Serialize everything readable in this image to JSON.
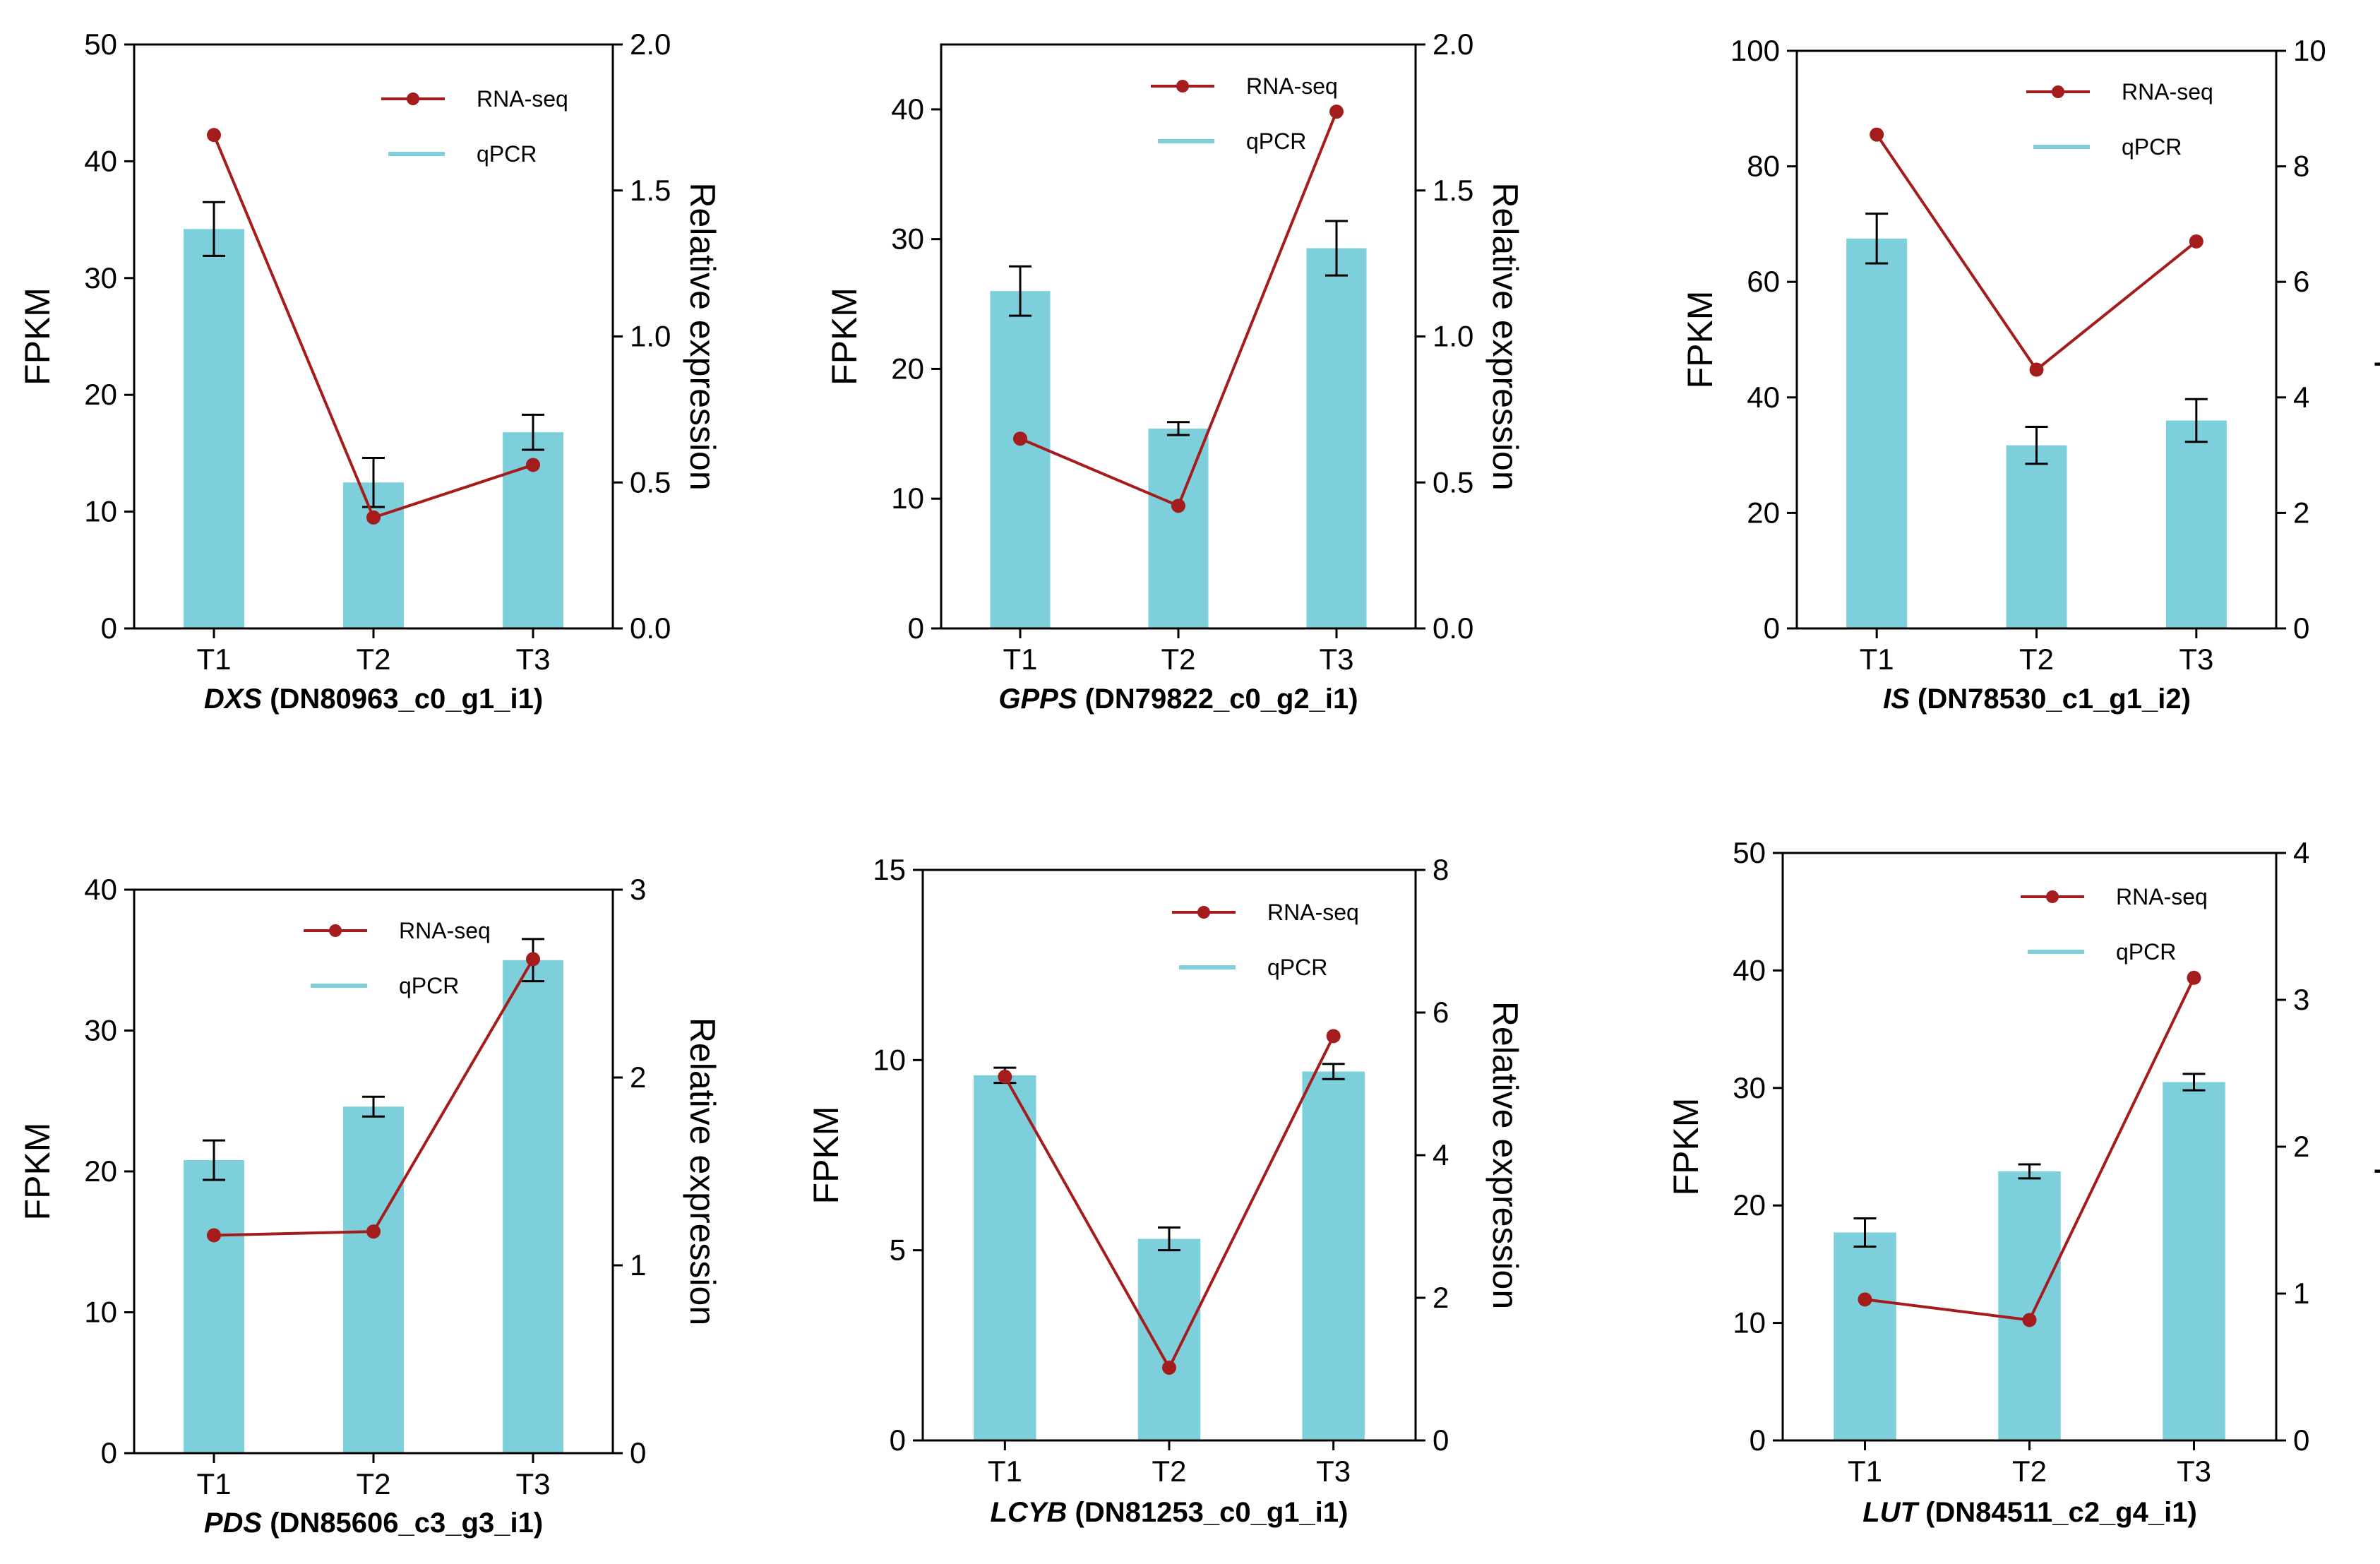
{
  "chart_data": [
    {
      "type": "bar",
      "gene": "DXS",
      "id": "(DN80963_c0_g1_i1)",
      "categories": [
        "T1",
        "T2",
        "T3"
      ],
      "ylabel": "FPKM",
      "y2label": "Relative expression",
      "ylim": [
        0,
        50
      ],
      "yticks": [
        "0",
        "10",
        "20",
        "30",
        "40",
        "50"
      ],
      "y2lim": [
        0,
        2.0
      ],
      "y2ticks": [
        "0.0",
        "0.5",
        "1.0",
        "1.5",
        "2.0"
      ],
      "legend": {
        "line": "RNA-seq",
        "bar": "qPCR"
      },
      "bar_series": {
        "name": "qPCR",
        "values": [
          34.2,
          12.5,
          16.8
        ],
        "errors": [
          2.3,
          2.1,
          1.5
        ]
      },
      "line_series": {
        "name": "RNA-seq",
        "values": [
          1.69,
          0.38,
          0.56
        ]
      },
      "colors": {
        "bar": "#7ecfdc",
        "line": "#a51c1c"
      }
    },
    {
      "type": "bar",
      "gene": "GPPS",
      "id": "(DN79822_c0_g2_i1)",
      "categories": [
        "T1",
        "T2",
        "T3"
      ],
      "ylabel": "FPKM",
      "y2label": "Relative expression",
      "ylim": [
        0,
        45
      ],
      "yticks": [
        "0",
        "10",
        "20",
        "30",
        "40"
      ],
      "y2lim": [
        0,
        2.0
      ],
      "y2ticks": [
        "0.0",
        "0.5",
        "1.0",
        "1.5",
        "2.0"
      ],
      "legend": {
        "line": "RNA-seq",
        "bar": "qPCR"
      },
      "bar_series": {
        "name": "qPCR",
        "values": [
          26.0,
          15.4,
          29.3
        ],
        "errors": [
          1.9,
          0.5,
          2.1
        ]
      },
      "line_series": {
        "name": "RNA-seq",
        "values": [
          0.65,
          0.42,
          1.77
        ]
      },
      "colors": {
        "bar": "#7ecfdc",
        "line": "#a51c1c"
      }
    },
    {
      "type": "bar",
      "gene": "IS",
      "id": "(DN78530_c1_g1_i2)",
      "categories": [
        "T1",
        "T2",
        "T3"
      ],
      "ylabel": "FPKM",
      "y2label": "Relative expression",
      "ylim": [
        0,
        100
      ],
      "yticks": [
        "0",
        "20",
        "40",
        "60",
        "80",
        "100"
      ],
      "y2lim": [
        0,
        10
      ],
      "y2ticks": [
        "0",
        "2",
        "4",
        "6",
        "8",
        "10"
      ],
      "legend": {
        "line": "RNA-seq",
        "bar": "qPCR"
      },
      "bar_series": {
        "name": "qPCR",
        "values": [
          67.5,
          31.7,
          36.0
        ],
        "errors": [
          4.3,
          3.2,
          3.7
        ]
      },
      "line_series": {
        "name": "RNA-seq",
        "values": [
          8.55,
          4.48,
          6.7
        ]
      },
      "colors": {
        "bar": "#7ecfdc",
        "line": "#a51c1c"
      }
    },
    {
      "type": "bar",
      "gene": "PDS",
      "id": "(DN85606_c3_g3_i1)",
      "categories": [
        "T1",
        "T2",
        "T3"
      ],
      "ylabel": "FPKM",
      "y2label": "Relative expression",
      "ylim": [
        0,
        40
      ],
      "yticks": [
        "0",
        "10",
        "20",
        "30",
        "40"
      ],
      "y2lim": [
        0,
        3
      ],
      "y2ticks": [
        "0",
        "1",
        "2",
        "3"
      ],
      "legend": {
        "line": "RNA-seq",
        "bar": "qPCR"
      },
      "bar_series": {
        "name": "qPCR",
        "values": [
          20.8,
          24.6,
          35.0
        ],
        "errors": [
          1.4,
          0.7,
          1.5
        ]
      },
      "line_series": {
        "name": "RNA-seq",
        "values": [
          1.16,
          1.18,
          2.63
        ]
      },
      "colors": {
        "bar": "#7ecfdc",
        "line": "#a51c1c"
      }
    },
    {
      "type": "bar",
      "gene": "LCYB",
      "id": "(DN81253_c0_g1_i1)",
      "categories": [
        "T1",
        "T2",
        "T3"
      ],
      "ylabel": "FPKM",
      "y2label": "Relative expression",
      "ylim": [
        0,
        15
      ],
      "yticks": [
        "0",
        "5",
        "10",
        "15"
      ],
      "y2lim": [
        0,
        8
      ],
      "y2ticks": [
        "0",
        "2",
        "4",
        "6",
        "8"
      ],
      "legend": {
        "line": "RNA-seq",
        "bar": "qPCR"
      },
      "bar_series": {
        "name": "qPCR",
        "values": [
          9.6,
          5.3,
          9.7
        ],
        "errors": [
          0.2,
          0.3,
          0.2
        ]
      },
      "line_series": {
        "name": "RNA-seq",
        "values": [
          5.1,
          1.02,
          5.67
        ]
      },
      "colors": {
        "bar": "#7ecfdc",
        "line": "#a51c1c"
      }
    },
    {
      "type": "bar",
      "gene": "LUT",
      "id": "(DN84511_c2_g4_i1)",
      "categories": [
        "T1",
        "T2",
        "T3"
      ],
      "ylabel": "FPKM",
      "y2label": "Relative expression",
      "ylim": [
        0,
        50
      ],
      "yticks": [
        "0",
        "10",
        "20",
        "30",
        "40",
        "50"
      ],
      "y2lim": [
        0,
        4
      ],
      "y2ticks": [
        "0",
        "1",
        "2",
        "3",
        "4"
      ],
      "legend": {
        "line": "RNA-seq",
        "bar": "qPCR"
      },
      "bar_series": {
        "name": "qPCR",
        "values": [
          17.7,
          22.9,
          30.5
        ],
        "errors": [
          1.2,
          0.6,
          0.7
        ]
      },
      "line_series": {
        "name": "RNA-seq",
        "values": [
          0.96,
          0.82,
          3.15
        ]
      },
      "colors": {
        "bar": "#7ecfdc",
        "line": "#a51c1c"
      }
    }
  ]
}
